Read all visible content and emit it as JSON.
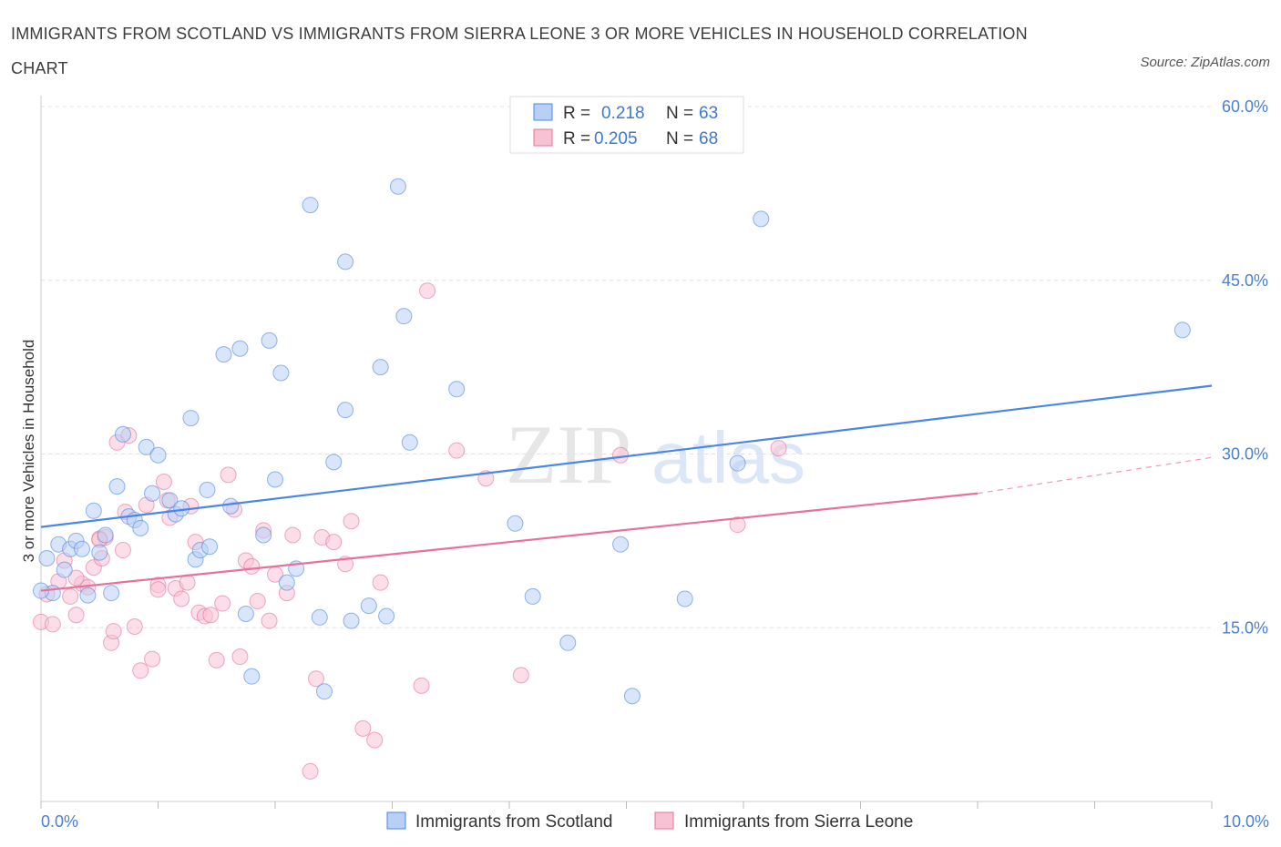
{
  "title": "IMMIGRANTS FROM SCOTLAND VS IMMIGRANTS FROM SIERRA LEONE 3 OR MORE VEHICLES IN HOUSEHOLD CORRELATION CHART",
  "source": "Source: ZipAtlas.com",
  "watermark": {
    "zip": "ZIP",
    "atlas": "atlas"
  },
  "colors": {
    "blue": "#4a86e8",
    "blue_fill": "#b9cff5",
    "pink": "#e8709a",
    "pink_fill": "#f7c3d4",
    "grid": "#e0e0e0",
    "tick_text": "#4a7fd4"
  },
  "legend": {
    "rows": [
      {
        "r_label": "R =",
        "r_value": "0.218",
        "n_label": "N =",
        "n_value": "63"
      },
      {
        "r_label": "R =",
        "r_value": "0.205",
        "n_label": "N =",
        "n_value": "68"
      }
    ]
  },
  "chart_data": {
    "type": "scatter",
    "title": "IMMIGRANTS FROM SCOTLAND VS IMMIGRANTS FROM SIERRA LEONE 3 OR MORE VEHICLES IN HOUSEHOLD CORRELATION CHART",
    "xlabel": "",
    "ylabel": "3 or more Vehicles in Household",
    "xlim": [
      0,
      10
    ],
    "ylim": [
      0,
      60
    ],
    "x_tick_labels": [
      "0.0%",
      "10.0%"
    ],
    "y_ticks": [
      15,
      30,
      45,
      60
    ],
    "y_tick_labels": [
      "15.0%",
      "30.0%",
      "45.0%",
      "60.0%"
    ],
    "grid": true,
    "legend_position": "top-center",
    "series": [
      {
        "name": "Immigrants from Scotland",
        "color": "#4a86e8",
        "trend": {
          "x": [
            0,
            10
          ],
          "y": [
            23.7,
            35.9
          ]
        },
        "points": [
          [
            0.05,
            21.0
          ],
          [
            0.1,
            18.0
          ],
          [
            0.15,
            22.2
          ],
          [
            0.2,
            20.0
          ],
          [
            0.25,
            21.8
          ],
          [
            0.3,
            22.5
          ],
          [
            0.35,
            21.8
          ],
          [
            0.4,
            17.8
          ],
          [
            0.45,
            25.1
          ],
          [
            0.5,
            21.5
          ],
          [
            0.55,
            23.0
          ],
          [
            0.6,
            18.0
          ],
          [
            0.65,
            27.2
          ],
          [
            0.7,
            31.7
          ],
          [
            0.75,
            24.6
          ],
          [
            0.8,
            24.3
          ],
          [
            0.85,
            23.6
          ],
          [
            0.9,
            30.6
          ],
          [
            0.95,
            26.6
          ],
          [
            1.0,
            29.9
          ],
          [
            1.1,
            26.0
          ],
          [
            1.15,
            24.8
          ],
          [
            1.2,
            25.3
          ],
          [
            1.28,
            33.1
          ],
          [
            1.32,
            20.9
          ],
          [
            1.36,
            21.7
          ],
          [
            1.42,
            26.9
          ],
          [
            1.44,
            22.0
          ],
          [
            1.56,
            38.6
          ],
          [
            1.62,
            25.5
          ],
          [
            1.7,
            39.1
          ],
          [
            1.75,
            16.2
          ],
          [
            1.8,
            10.8
          ],
          [
            1.9,
            23.0
          ],
          [
            1.95,
            39.8
          ],
          [
            2.0,
            27.8
          ],
          [
            2.05,
            37.0
          ],
          [
            2.1,
            18.9
          ],
          [
            2.18,
            20.1
          ],
          [
            2.3,
            51.5
          ],
          [
            2.38,
            15.9
          ],
          [
            2.42,
            9.5
          ],
          [
            2.5,
            29.3
          ],
          [
            2.6,
            33.8
          ],
          [
            2.6,
            46.6
          ],
          [
            2.65,
            15.6
          ],
          [
            2.8,
            16.9
          ],
          [
            2.9,
            37.5
          ],
          [
            2.95,
            16.0
          ],
          [
            3.1,
            41.9
          ],
          [
            3.05,
            53.1
          ],
          [
            3.15,
            31.0
          ],
          [
            3.55,
            35.6
          ],
          [
            4.05,
            24.0
          ],
          [
            4.2,
            17.7
          ],
          [
            4.5,
            13.7
          ],
          [
            4.95,
            22.2
          ],
          [
            5.05,
            9.1
          ],
          [
            5.5,
            17.5
          ],
          [
            5.95,
            29.2
          ],
          [
            6.15,
            50.3
          ],
          [
            9.75,
            40.7
          ],
          [
            0.0,
            18.2
          ]
        ]
      },
      {
        "name": "Immigrants from Sierra Leone",
        "color": "#e8709a",
        "trend": {
          "x": [
            0,
            8.0
          ],
          "y": [
            18.2,
            26.6
          ]
        },
        "trend_dashed": {
          "x": [
            8.0,
            10
          ],
          "y": [
            26.6,
            29.7
          ]
        },
        "points": [
          [
            0.0,
            15.5
          ],
          [
            0.1,
            15.3
          ],
          [
            0.15,
            19.0
          ],
          [
            0.2,
            20.8
          ],
          [
            0.25,
            17.7
          ],
          [
            0.3,
            16.1
          ],
          [
            0.35,
            18.8
          ],
          [
            0.4,
            18.5
          ],
          [
            0.45,
            20.2
          ],
          [
            0.5,
            22.7
          ],
          [
            0.52,
            21.0
          ],
          [
            0.55,
            22.8
          ],
          [
            0.6,
            13.7
          ],
          [
            0.62,
            14.7
          ],
          [
            0.65,
            31.0
          ],
          [
            0.7,
            21.7
          ],
          [
            0.72,
            25.0
          ],
          [
            0.75,
            31.6
          ],
          [
            0.8,
            15.1
          ],
          [
            0.85,
            11.3
          ],
          [
            0.9,
            25.6
          ],
          [
            0.95,
            12.3
          ],
          [
            1.0,
            18.7
          ],
          [
            1.05,
            27.6
          ],
          [
            1.08,
            26.0
          ],
          [
            1.1,
            24.5
          ],
          [
            1.15,
            18.4
          ],
          [
            1.2,
            17.5
          ],
          [
            1.25,
            18.9
          ],
          [
            1.28,
            25.5
          ],
          [
            1.32,
            22.4
          ],
          [
            1.35,
            16.3
          ],
          [
            1.4,
            16.0
          ],
          [
            1.45,
            16.1
          ],
          [
            1.5,
            12.2
          ],
          [
            1.55,
            17.1
          ],
          [
            1.6,
            28.2
          ],
          [
            1.65,
            25.2
          ],
          [
            1.7,
            12.5
          ],
          [
            1.75,
            20.8
          ],
          [
            1.8,
            20.3
          ],
          [
            1.85,
            17.3
          ],
          [
            1.9,
            23.4
          ],
          [
            1.95,
            15.6
          ],
          [
            2.0,
            19.6
          ],
          [
            2.1,
            18.0
          ],
          [
            2.15,
            23.0
          ],
          [
            2.3,
            2.6
          ],
          [
            2.35,
            10.6
          ],
          [
            2.4,
            22.8
          ],
          [
            2.5,
            22.4
          ],
          [
            2.6,
            20.5
          ],
          [
            2.65,
            24.2
          ],
          [
            2.75,
            6.3
          ],
          [
            2.85,
            5.3
          ],
          [
            2.9,
            18.9
          ],
          [
            3.25,
            10.0
          ],
          [
            3.3,
            44.1
          ],
          [
            3.55,
            30.3
          ],
          [
            3.8,
            27.9
          ],
          [
            4.1,
            10.9
          ],
          [
            4.95,
            29.9
          ],
          [
            5.95,
            23.9
          ],
          [
            6.3,
            30.5
          ],
          [
            0.05,
            17.9
          ],
          [
            0.3,
            19.3
          ],
          [
            0.5,
            22.6
          ],
          [
            1.0,
            18.3
          ]
        ]
      }
    ]
  },
  "bottom_legend": [
    {
      "label": "Immigrants from Scotland"
    },
    {
      "label": "Immigrants from Sierra Leone"
    }
  ]
}
